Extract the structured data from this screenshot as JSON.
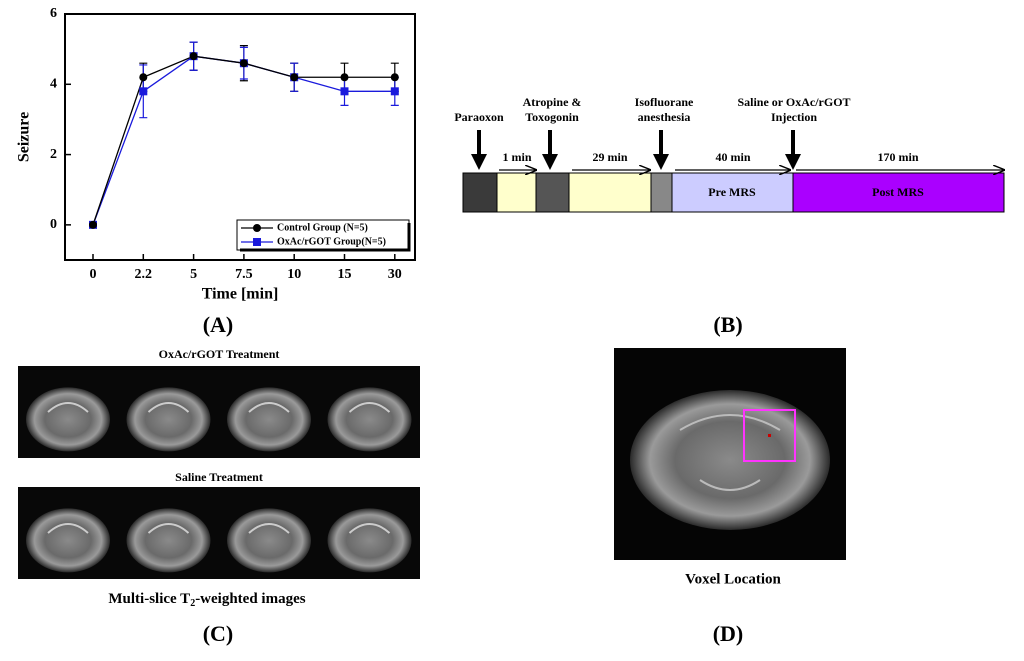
{
  "chart_data": {
    "type": "line",
    "xlabel": "Time [min]",
    "ylabel": "Seizure",
    "categories": [
      "0",
      "2.2",
      "5",
      "7.5",
      "10",
      "15",
      "30"
    ],
    "series": [
      {
        "name": "Control Group (N=5)",
        "color": "#000000",
        "marker": "circle",
        "values": [
          0,
          4.2,
          4.8,
          4.6,
          4.2,
          4.2,
          4.2
        ],
        "errors": [
          0,
          0.4,
          0.4,
          0.5,
          0.4,
          0.4,
          0.4
        ]
      },
      {
        "name": "OxAc/rGOT Group(N=5)",
        "color": "#1a1adc",
        "marker": "square",
        "values": [
          0,
          3.8,
          4.8,
          4.6,
          4.2,
          3.8,
          3.8
        ],
        "errors": [
          0,
          0.75,
          0.4,
          0.45,
          0.4,
          0.4,
          0.4
        ]
      }
    ],
    "ylim": [
      -1,
      6
    ],
    "yticks": [
      0,
      2,
      4,
      6
    ],
    "legend": "lower right"
  },
  "panel_labels": [
    "(A)",
    "(B)",
    "(C)",
    "(D)"
  ],
  "timeline": {
    "events": [
      [
        "Paraoxon"
      ],
      [
        "Atropine &",
        "Toxogonin"
      ],
      [
        "Isofluorane",
        "anesthesia"
      ],
      [
        "Saline or OxAc/rGOT",
        "Injection"
      ]
    ],
    "durations": [
      "1 min",
      "29 min",
      "40 min",
      "170 min"
    ],
    "phases": [
      "Pre MRS",
      "Post MRS"
    ]
  },
  "images": {
    "top_title": "OxAc/rGOT Treatment",
    "bottom_title": "Saline Treatment",
    "caption": [
      "Multi-slice T",
      "2",
      "-weighted images"
    ],
    "voxel_caption": "Voxel Location"
  }
}
